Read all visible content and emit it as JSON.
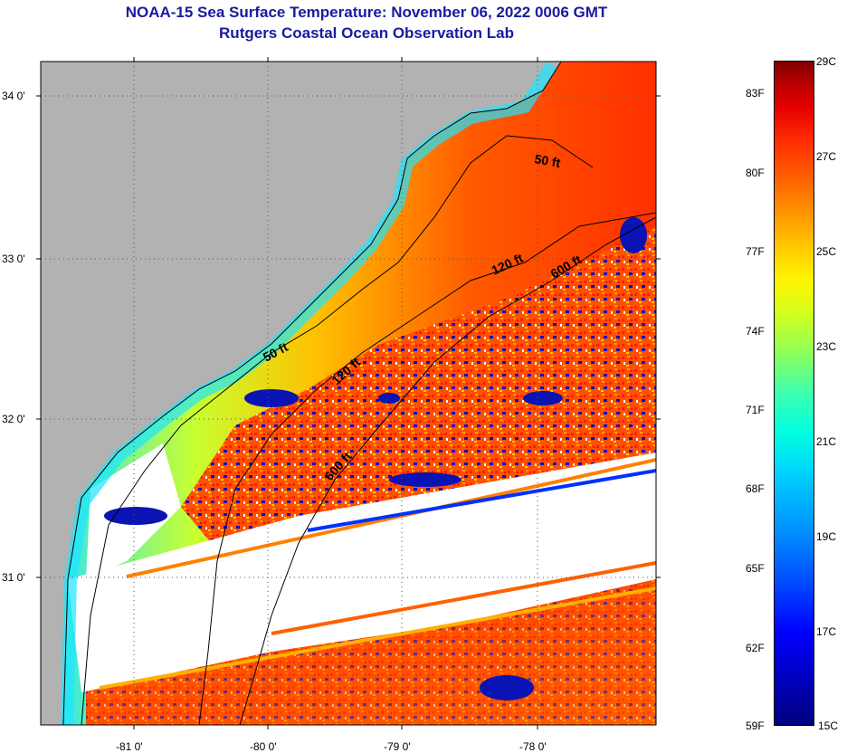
{
  "title": {
    "line1": "NOAA-15 Sea Surface Temperature:  November 06, 2022 0006 GMT",
    "line2": "Rutgers Coastal Ocean Observation Lab"
  },
  "map": {
    "lon_ticks": [
      "-81 0'",
      "-80 0'",
      "-79 0'",
      "-78 0'"
    ],
    "lat_ticks": [
      "34 0'",
      "33 0'",
      "32 0'",
      "31 0'"
    ],
    "contours": [
      {
        "text": "50 ft"
      },
      {
        "text": "120 ft"
      },
      {
        "text": "600 ft"
      },
      {
        "text": "50 ft"
      },
      {
        "text": "120 ft"
      },
      {
        "text": "600 ft"
      }
    ],
    "colors": {
      "land": "#b2b2b2",
      "nodata": "#ffffff"
    }
  },
  "colorbar": {
    "fahrenheit": [
      "83F",
      "80F",
      "77F",
      "74F",
      "71F",
      "68F",
      "65F",
      "62F",
      "59F"
    ],
    "celsius": [
      "29C",
      "27C",
      "25C",
      "23C",
      "21C",
      "19C",
      "17C",
      "15C"
    ]
  }
}
